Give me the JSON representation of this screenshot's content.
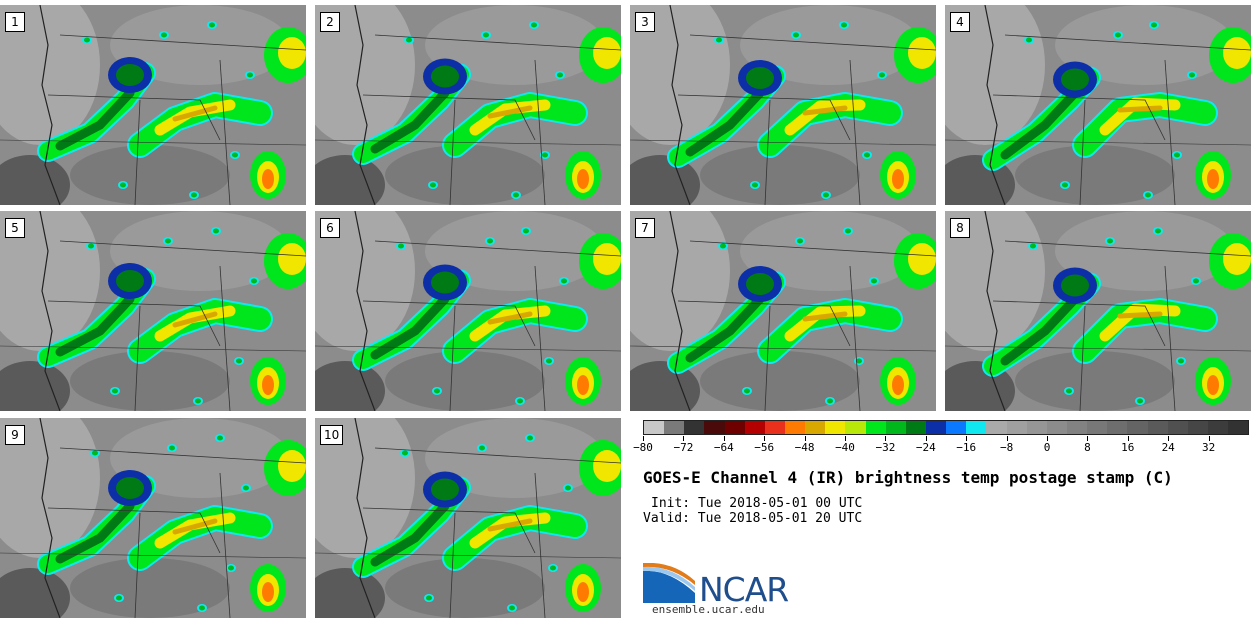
{
  "panels": [
    {
      "label": "1"
    },
    {
      "label": "2"
    },
    {
      "label": "3"
    },
    {
      "label": "4"
    },
    {
      "label": "5"
    },
    {
      "label": "6"
    },
    {
      "label": "7"
    },
    {
      "label": "8"
    },
    {
      "label": "9"
    },
    {
      "label": "10"
    }
  ],
  "colorbar": {
    "ticks": [
      "−80",
      "−72",
      "−64",
      "−56",
      "−48",
      "−40",
      "−32",
      "−24",
      "−16",
      "−8",
      "0",
      "8",
      "16",
      "24",
      "32"
    ],
    "colors": [
      "#c8c8c8",
      "#7a7a7a",
      "#333333",
      "#4a0a0a",
      "#6e0000",
      "#b40000",
      "#e8301c",
      "#ff7a00",
      "#d8a800",
      "#f0e600",
      "#b8e80a",
      "#00e61c",
      "#00b81c",
      "#007a14",
      "#0c2fa8",
      "#0a78ff",
      "#10e8f0",
      "#aaaaaa",
      "#a0a0a0",
      "#969696",
      "#8c8c8c",
      "#828282",
      "#787878",
      "#6e6e6e",
      "#646464",
      "#5a5a5a",
      "#505050",
      "#464646",
      "#3c3c3c",
      "#323232"
    ]
  },
  "title": "GOES-E Channel 4 (IR) brightness temp postage stamp (C)",
  "init": "Init: Tue 2018-05-01 00 UTC",
  "valid": "Valid: Tue 2018-05-01 20 UTC",
  "logo": {
    "text": "NCAR",
    "url": "ensemble.ucar.edu"
  }
}
